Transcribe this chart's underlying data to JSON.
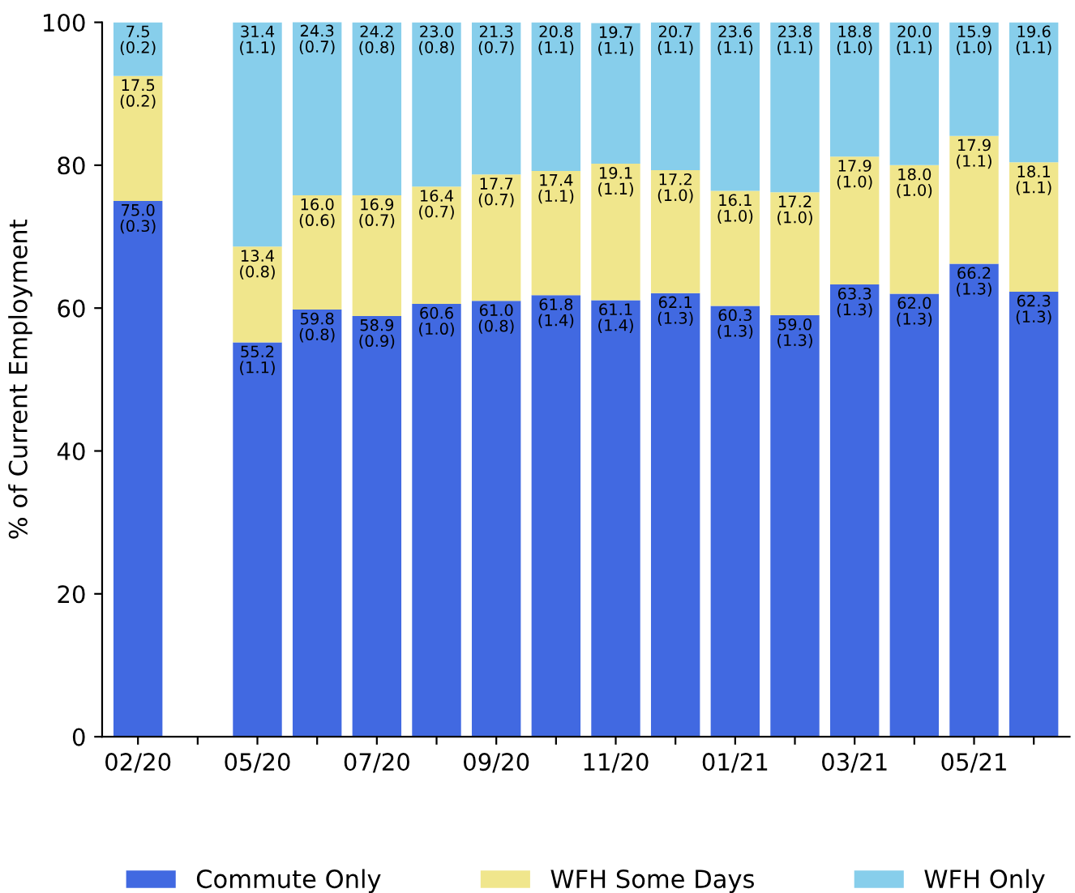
{
  "chart_data": {
    "type": "bar",
    "stacked": true,
    "ylabel": "% of Current Employment",
    "ylim": [
      0,
      100
    ],
    "yticks": [
      0,
      20,
      40,
      60,
      80,
      100
    ],
    "grid": false,
    "legend": "bottom",
    "categories": [
      "02/20",
      null,
      "05/20",
      null,
      "07/20",
      null,
      "09/20",
      null,
      "11/20",
      null,
      "01/21",
      null,
      "03/21",
      null,
      "05/21",
      null
    ],
    "series": [
      {
        "name": "Commute Only",
        "color": "#4169e1",
        "values": [
          75.0,
          null,
          55.2,
          59.8,
          58.9,
          60.6,
          61.0,
          61.8,
          61.1,
          62.1,
          60.3,
          59.0,
          63.3,
          62.0,
          66.2,
          62.3
        ],
        "value_labels": [
          "75.0\n(0.3)",
          null,
          "55.2\n(1.1)",
          "59.8\n(0.8)",
          "58.9\n(0.9)",
          "60.6\n(1.0)",
          "61.0\n(0.8)",
          "61.8\n(1.4)",
          "61.1\n(1.4)",
          "62.1\n(1.3)",
          "60.3\n(1.3)",
          "59.0\n(1.3)",
          "63.3\n(1.3)",
          "62.0\n(1.3)",
          "66.2\n(1.3)",
          "62.3\n(1.3)"
        ]
      },
      {
        "name": "WFH Some Days",
        "color": "#f0e68c",
        "values": [
          17.5,
          null,
          13.4,
          16.0,
          16.9,
          16.4,
          17.7,
          17.4,
          19.1,
          17.2,
          16.1,
          17.2,
          17.9,
          18.0,
          17.9,
          18.1
        ],
        "value_labels": [
          "17.5\n(0.2)",
          null,
          "13.4\n(0.8)",
          "16.0\n(0.6)",
          "16.9\n(0.7)",
          "16.4\n(0.7)",
          "17.7\n(0.7)",
          "17.4\n(1.1)",
          "19.1\n(1.1)",
          "17.2\n(1.0)",
          "16.1\n(1.0)",
          "17.2\n(1.0)",
          "17.9\n(1.0)",
          "18.0\n(1.0)",
          "17.9\n(1.1)",
          "18.1\n(1.1)"
        ]
      },
      {
        "name": "WFH Only",
        "color": "#87ceeb",
        "values": [
          7.5,
          null,
          31.4,
          24.3,
          24.2,
          23.0,
          21.3,
          20.8,
          19.7,
          20.7,
          23.6,
          23.8,
          18.8,
          20.0,
          15.9,
          19.6
        ],
        "value_labels": [
          "7.5\n(0.2)",
          null,
          "31.4\n(1.1)",
          "24.3\n(0.7)",
          "24.2\n(0.8)",
          "23.0\n(0.8)",
          "21.3\n(0.7)",
          "20.8\n(1.1)",
          "19.7\n(1.1)",
          "20.7\n(1.1)",
          "23.6\n(1.1)",
          "23.8\n(1.1)",
          "18.8\n(1.0)",
          "20.0\n(1.1)",
          "15.9\n(1.0)",
          "19.6\n(1.1)"
        ]
      }
    ]
  }
}
